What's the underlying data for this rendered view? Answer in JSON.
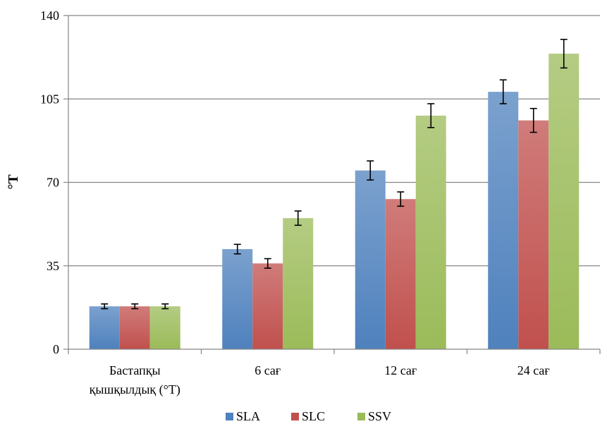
{
  "chart_data": {
    "type": "bar",
    "title": "",
    "xlabel": "",
    "ylabel": "°T",
    "ylim": [
      0,
      140
    ],
    "yticks": [
      0,
      35,
      70,
      105,
      140
    ],
    "grid": true,
    "legend_position": "bottom",
    "categories": [
      [
        "Бастапқы",
        "қышқылдық (°T)"
      ],
      [
        "6 сағ"
      ],
      [
        "12 сағ"
      ],
      [
        "24 сағ"
      ]
    ],
    "series": [
      {
        "name": "SLA",
        "color": "#4F81BD",
        "values": [
          18,
          42,
          75,
          108
        ],
        "errors": [
          1,
          2,
          4,
          5
        ]
      },
      {
        "name": "SLC",
        "color": "#C0504D",
        "values": [
          18,
          36,
          63,
          96
        ],
        "errors": [
          1,
          2,
          3,
          5
        ]
      },
      {
        "name": "SSV",
        "color": "#9BBB59",
        "values": [
          18,
          55,
          98,
          124
        ],
        "errors": [
          1,
          3,
          5,
          6
        ]
      }
    ]
  }
}
